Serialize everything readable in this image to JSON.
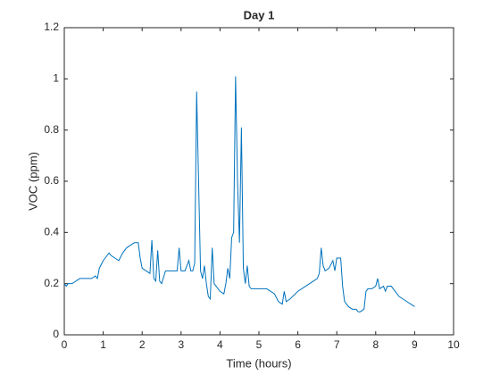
{
  "chart_data": {
    "type": "line",
    "title": "Day 1",
    "xlabel": "Time (hours)",
    "ylabel": "VOC (ppm)",
    "x": [
      0,
      0.05,
      0.1,
      0.2,
      0.3,
      0.4,
      0.5,
      0.6,
      0.7,
      0.8,
      0.85,
      0.9,
      1.0,
      1.1,
      1.15,
      1.2,
      1.3,
      1.4,
      1.5,
      1.6,
      1.7,
      1.8,
      1.9,
      1.95,
      2.0,
      2.1,
      2.2,
      2.25,
      2.3,
      2.35,
      2.4,
      2.45,
      2.5,
      2.6,
      2.7,
      2.8,
      2.9,
      2.95,
      3.0,
      3.1,
      3.2,
      3.25,
      3.3,
      3.35,
      3.4,
      3.45,
      3.5,
      3.55,
      3.6,
      3.65,
      3.7,
      3.75,
      3.8,
      3.85,
      3.9,
      4.0,
      4.1,
      4.15,
      4.2,
      4.25,
      4.3,
      4.35,
      4.4,
      4.45,
      4.5,
      4.55,
      4.6,
      4.65,
      4.7,
      4.75,
      4.8,
      5.0,
      5.2,
      5.4,
      5.5,
      5.6,
      5.65,
      5.7,
      5.8,
      6.0,
      6.2,
      6.3,
      6.4,
      6.5,
      6.55,
      6.6,
      6.65,
      6.7,
      6.8,
      6.9,
      6.95,
      7.0,
      7.1,
      7.15,
      7.2,
      7.3,
      7.4,
      7.5,
      7.55,
      7.6,
      7.7,
      7.75,
      7.8,
      7.9,
      8.0,
      8.05,
      8.1,
      8.2,
      8.25,
      8.3,
      8.4,
      8.5,
      8.6,
      8.7,
      8.8,
      8.9,
      9.0
    ],
    "series": [
      {
        "name": "VOC",
        "color": "#0072bd",
        "values": [
          0.2,
          0.19,
          0.2,
          0.2,
          0.21,
          0.22,
          0.22,
          0.22,
          0.22,
          0.23,
          0.22,
          0.26,
          0.29,
          0.31,
          0.32,
          0.31,
          0.3,
          0.29,
          0.32,
          0.34,
          0.35,
          0.36,
          0.36,
          0.3,
          0.26,
          0.25,
          0.24,
          0.37,
          0.22,
          0.21,
          0.33,
          0.21,
          0.2,
          0.25,
          0.25,
          0.25,
          0.25,
          0.34,
          0.25,
          0.25,
          0.29,
          0.25,
          0.25,
          0.28,
          0.95,
          0.6,
          0.25,
          0.22,
          0.27,
          0.2,
          0.15,
          0.14,
          0.34,
          0.2,
          0.19,
          0.17,
          0.16,
          0.2,
          0.26,
          0.22,
          0.38,
          0.4,
          1.01,
          0.6,
          0.36,
          0.81,
          0.26,
          0.2,
          0.27,
          0.19,
          0.18,
          0.18,
          0.18,
          0.16,
          0.13,
          0.12,
          0.17,
          0.13,
          0.14,
          0.17,
          0.19,
          0.2,
          0.21,
          0.22,
          0.24,
          0.34,
          0.27,
          0.25,
          0.26,
          0.29,
          0.25,
          0.3,
          0.3,
          0.19,
          0.13,
          0.11,
          0.1,
          0.1,
          0.09,
          0.09,
          0.1,
          0.17,
          0.18,
          0.18,
          0.19,
          0.22,
          0.18,
          0.19,
          0.17,
          0.19,
          0.19,
          0.17,
          0.15,
          0.14,
          0.13,
          0.12,
          0.11
        ]
      }
    ],
    "xlim": [
      0,
      10
    ],
    "xticks": [
      0,
      1,
      2,
      3,
      4,
      5,
      6,
      7,
      8,
      9,
      10
    ],
    "ylim": [
      0,
      1.2
    ],
    "yticks": [
      0,
      0.2,
      0.4,
      0.6,
      0.8,
      1,
      1.2
    ]
  }
}
